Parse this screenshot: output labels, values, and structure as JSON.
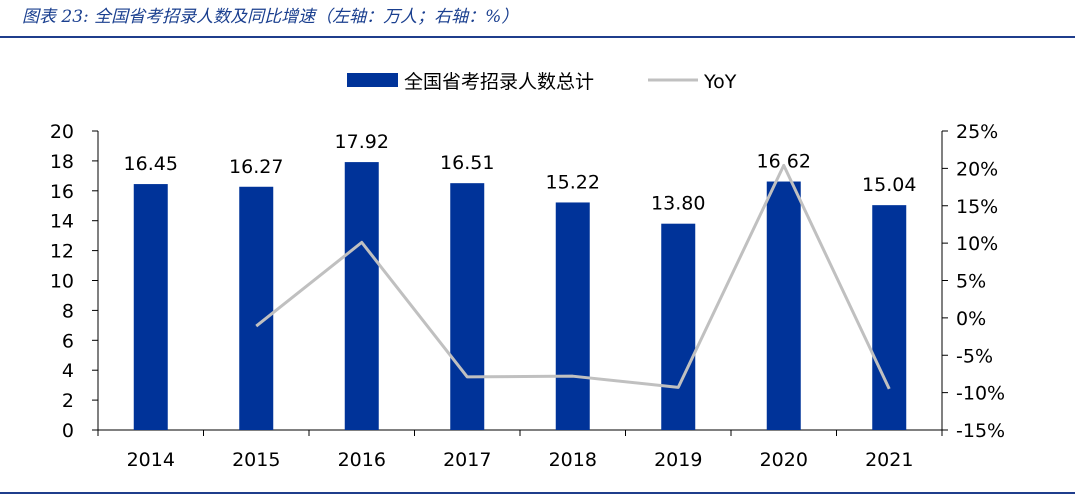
{
  "figure_title": "图表 23:  全国省考招录人数及同比增速（左轴：万人；右轴：%）",
  "chart_data": {
    "type": "bar",
    "categories": [
      "2014",
      "2015",
      "2016",
      "2017",
      "2018",
      "2019",
      "2020",
      "2021"
    ],
    "series": [
      {
        "name": "全国省考招录人数总计",
        "kind": "bar",
        "axis": "left",
        "color": "#003399",
        "values": [
          16.45,
          16.27,
          17.92,
          16.51,
          15.22,
          13.8,
          16.62,
          15.04
        ],
        "data_labels": [
          "16.45",
          "16.27",
          "17.92",
          "16.51",
          "15.22",
          "13.80",
          "16.62",
          "15.04"
        ]
      },
      {
        "name": "YoY",
        "kind": "line",
        "axis": "right",
        "color": "#c0c0c0",
        "values": [
          null,
          -1.1,
          10.1,
          -7.9,
          -7.8,
          -9.3,
          20.4,
          -9.5
        ]
      }
    ],
    "left_axis": {
      "min": 0,
      "max": 20,
      "step": 2,
      "ticks": [
        "0",
        "2",
        "4",
        "6",
        "8",
        "10",
        "12",
        "14",
        "16",
        "18",
        "20"
      ]
    },
    "right_axis": {
      "min": -15,
      "max": 25,
      "step": 5,
      "ticks": [
        "-15%",
        "-10%",
        "-5%",
        "0%",
        "5%",
        "10%",
        "15%",
        "20%",
        "25%"
      ]
    },
    "legend_position": "top-center",
    "grid": false
  }
}
